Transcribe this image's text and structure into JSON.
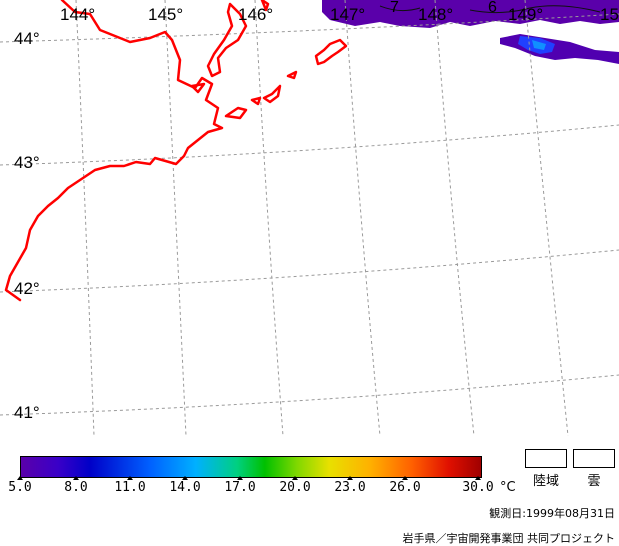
{
  "map": {
    "lon_labels": [
      "144°",
      "145°",
      "146°",
      "147°",
      "148°",
      "149°",
      "15"
    ],
    "lat_labels": [
      "44°",
      "43°",
      "42°",
      "41°"
    ],
    "contour_labels": [
      "7",
      "6"
    ],
    "colors": {
      "coast": "#ff0000",
      "grid": "#9a9a9a",
      "sst_low": "#5a00aa",
      "sst_mid": "#2030ff"
    }
  },
  "legend": {
    "tick_labels": [
      "5.0",
      "8.0",
      "11.0",
      "14.0",
      "17.0",
      "20.0",
      "23.0",
      "26.0",
      "30.0"
    ],
    "unit": "°C",
    "land_label": "陸域",
    "cloud_label": "雲"
  },
  "footer": {
    "date": "観測日:1999年08月31日",
    "credit": "岩手県／宇宙開発事業団 共同プロジェクト"
  }
}
